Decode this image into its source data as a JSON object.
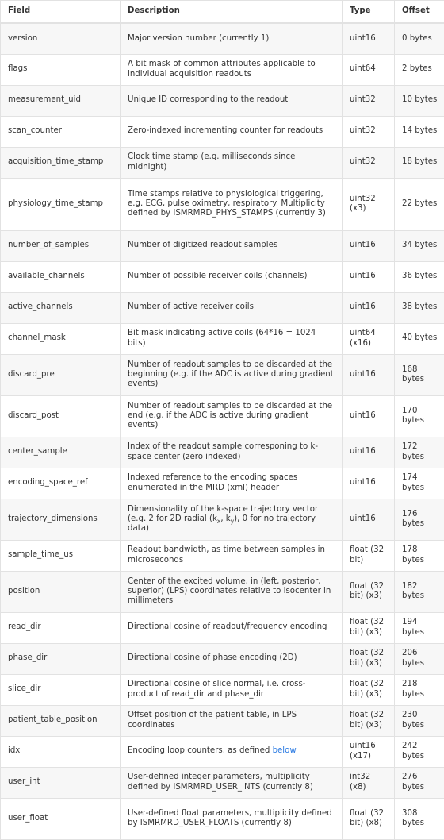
{
  "columns": [
    "Field",
    "Description",
    "Type",
    "Offset"
  ],
  "rows": [
    {
      "field": "version",
      "description": "Major version number (currently 1)",
      "type": "uint16",
      "offset": "0 bytes"
    },
    {
      "field": "flags",
      "description": "A bit mask of common attributes applicable to individual acquisition readouts",
      "type": "uint64",
      "offset": "2 bytes"
    },
    {
      "field": "measurement_uid",
      "description": "Unique ID corresponding to the readout",
      "type": "uint32",
      "offset": "10 bytes"
    },
    {
      "field": "scan_counter",
      "description": "Zero-indexed incrementing counter for readouts",
      "type": "uint32",
      "offset": "14 bytes"
    },
    {
      "field": "acquisition_time_stamp",
      "description": "Clock time stamp (e.g. milliseconds since midnight)",
      "type": "uint32",
      "offset": "18 bytes"
    },
    {
      "field": "physiology_time_stamp",
      "description": "Time stamps relative to physiological triggering, e.g. ECG, pulse oximetry, respiratory. Multiplicity defined by ISMRMRD_PHYS_STAMPS (currently 3)",
      "type": "uint32 (x3)",
      "offset": "22 bytes"
    },
    {
      "field": "number_of_samples",
      "description": "Number of digitized readout samples",
      "type": "uint16",
      "offset": "34 bytes"
    },
    {
      "field": "available_channels",
      "description": "Number of possible receiver coils (channels)",
      "type": "uint16",
      "offset": "36 bytes"
    },
    {
      "field": "active_channels",
      "description": "Number of active receiver coils",
      "type": "uint16",
      "offset": "38 bytes"
    },
    {
      "field": "channel_mask",
      "description": "Bit mask indicating active coils (64*16 = 1024 bits)",
      "type": "uint64 (x16)",
      "offset": "40 bytes"
    },
    {
      "field": "discard_pre",
      "description": "Number of readout samples to be discarded at the beginning (e.g. if the ADC is active during gradient events)",
      "type": "uint16",
      "offset": "168 bytes"
    },
    {
      "field": "discard_post",
      "description": "Number of readout samples to be discarded at the end (e.g. if the ADC is active during gradient events)",
      "type": "uint16",
      "offset": "170 bytes"
    },
    {
      "field": "center_sample",
      "description": "Index of the readout sample corresponing to k-space center (zero indexed)",
      "type": "uint16",
      "offset": "172 bytes"
    },
    {
      "field": "encoding_space_ref",
      "description": "Indexed reference to the encoding spaces enumerated in the MRD (xml) header",
      "type": "uint16",
      "offset": "174 bytes"
    },
    {
      "field": "trajectory_dimensions",
      "description": "Dimensionality of the k-space trajectory vector (e.g. 2 for 2D radial (kx, ky), 0 for no trajectory data)",
      "type": "uint16",
      "offset": "176 bytes"
    },
    {
      "field": "sample_time_us",
      "description": "Readout bandwidth, as time between samples in microseconds",
      "type": "float (32 bit)",
      "offset": "178 bytes"
    },
    {
      "field": "position",
      "description": "Center of the excited volume, in (left, posterior, superior) (LPS) coordinates relative to isocenter in millimeters",
      "type": "float (32 bit) (x3)",
      "offset": "182 bytes"
    },
    {
      "field": "read_dir",
      "description": "Directional cosine of readout/frequency encoding",
      "type": "float (32 bit) (x3)",
      "offset": "194 bytes"
    },
    {
      "field": "phase_dir",
      "description": "Directional cosine of phase encoding (2D)",
      "type": "float (32 bit) (x3)",
      "offset": "206 bytes"
    },
    {
      "field": "slice_dir",
      "description": "Directional cosine of slice normal, i.e. cross-product of read_dir and phase_dir",
      "type": "float (32 bit) (x3)",
      "offset": "218 bytes"
    },
    {
      "field": "patient_table_position",
      "description": "Offset position of the patient table, in LPS coordinates",
      "type": "float (32 bit) (x3)",
      "offset": "230 bytes"
    },
    {
      "field": "idx",
      "description": "Encoding loop counters, as defined",
      "type": "uint16 (x17)",
      "offset": "242 bytes"
    },
    {
      "field": "user_int",
      "description": "User-defined integer parameters, multiplicity defined by ISMRMRD_USER_INTS (currently 8)",
      "type": "int32 (x8)",
      "offset": "276 bytes"
    },
    {
      "field": "user_float",
      "description": "User-defined float parameters, multiplicity defined by ISMRMRD_USER_FLOATS (currently 8)",
      "type": "float (32 bit) (x8)",
      "offset": "308 bytes"
    }
  ],
  "trajectory_parts": {
    "before": "Dimensionality of the k-space trajectory vector (e.g. 2 for 2D radial (k",
    "sub1": "x",
    "mid": ", k",
    "sub2": "y",
    "after": "), 0 for no trajectory data)"
  },
  "idx_link": {
    "text": "below",
    "color": "#2a7ae2"
  },
  "colors": {
    "stripe": "#f7f7f7",
    "border": "#e2e2e2",
    "text": "#333333",
    "link": "#2a7ae2"
  }
}
